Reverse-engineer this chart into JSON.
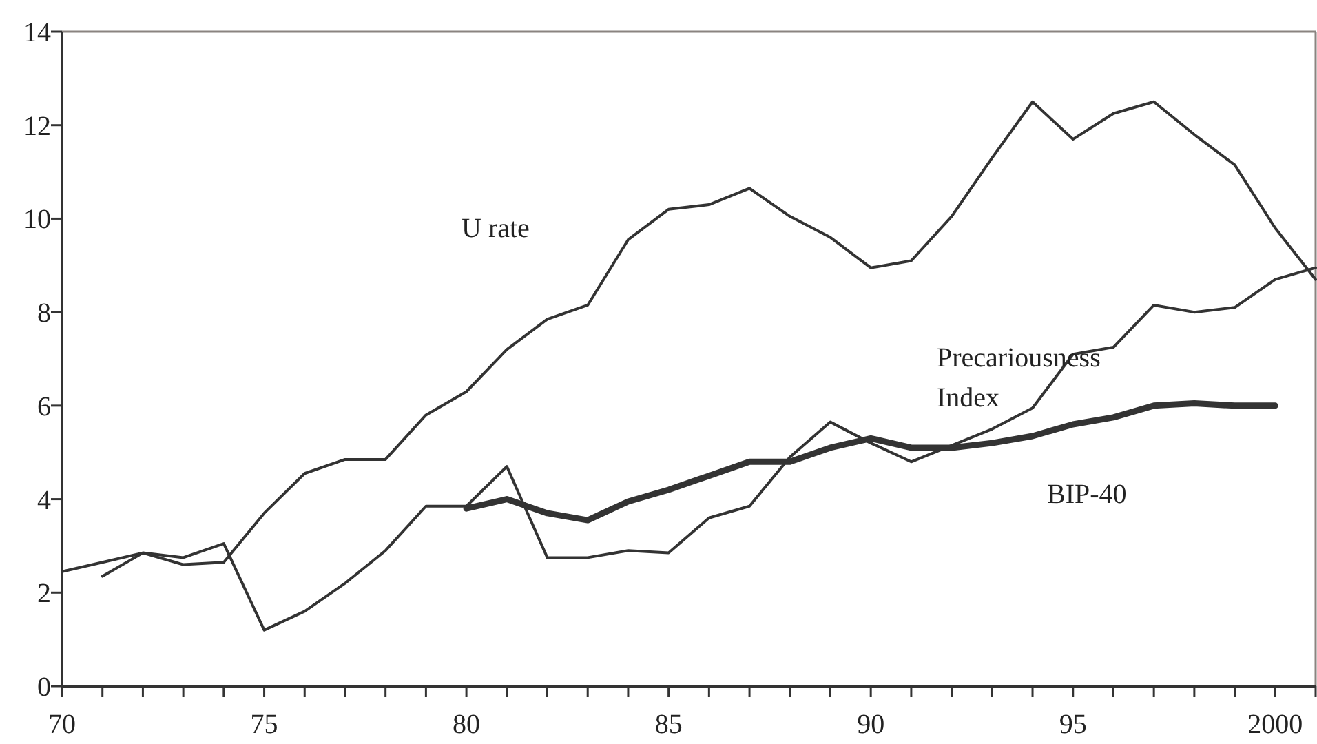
{
  "chart_data": {
    "type": "line",
    "xlim": [
      1970,
      2001
    ],
    "ylim": [
      0,
      14
    ],
    "xticks": [
      {
        "value": 1970,
        "label": "70"
      },
      {
        "value": 1971,
        "label": null
      },
      {
        "value": 1972,
        "label": null
      },
      {
        "value": 1973,
        "label": null
      },
      {
        "value": 1974,
        "label": null
      },
      {
        "value": 1975,
        "label": "75"
      },
      {
        "value": 1976,
        "label": null
      },
      {
        "value": 1977,
        "label": null
      },
      {
        "value": 1978,
        "label": null
      },
      {
        "value": 1979,
        "label": null
      },
      {
        "value": 1980,
        "label": "80"
      },
      {
        "value": 1981,
        "label": null
      },
      {
        "value": 1982,
        "label": null
      },
      {
        "value": 1983,
        "label": null
      },
      {
        "value": 1984,
        "label": null
      },
      {
        "value": 1985,
        "label": "85"
      },
      {
        "value": 1986,
        "label": null
      },
      {
        "value": 1987,
        "label": null
      },
      {
        "value": 1988,
        "label": null
      },
      {
        "value": 1989,
        "label": null
      },
      {
        "value": 1990,
        "label": "90"
      },
      {
        "value": 1991,
        "label": null
      },
      {
        "value": 1992,
        "label": null
      },
      {
        "value": 1993,
        "label": null
      },
      {
        "value": 1994,
        "label": null
      },
      {
        "value": 1995,
        "label": "95"
      },
      {
        "value": 1996,
        "label": null
      },
      {
        "value": 1997,
        "label": null
      },
      {
        "value": 1998,
        "label": null
      },
      {
        "value": 1999,
        "label": null
      },
      {
        "value": 2000,
        "label": "2000"
      },
      {
        "value": 2001,
        "label": null
      }
    ],
    "yticks": [
      0,
      2,
      4,
      6,
      8,
      10,
      12,
      14
    ],
    "grid": false,
    "marker": "none",
    "line_style": "solid",
    "series": [
      {
        "name": "U rate",
        "color": "#333333",
        "x": [
          1971,
          1972,
          1973,
          1974,
          1975,
          1976,
          1977,
          1978,
          1979,
          1980,
          1981,
          1982,
          1983,
          1984,
          1985,
          1986,
          1987,
          1988,
          1989,
          1990,
          1991,
          1992,
          1993,
          1994,
          1995,
          1996,
          1997,
          1998,
          1999,
          2000,
          2001
        ],
        "values": [
          2.35,
          2.85,
          2.6,
          2.65,
          3.7,
          4.55,
          4.85,
          4.85,
          5.8,
          6.3,
          7.2,
          7.85,
          8.15,
          9.55,
          10.2,
          10.3,
          10.65,
          10.05,
          9.6,
          8.95,
          9.1,
          10.05,
          11.3,
          12.5,
          11.7,
          12.25,
          12.5,
          11.8,
          11.15,
          9.8,
          8.7
        ]
      },
      {
        "name": "Precariousness Index",
        "color": "#333333",
        "x": [
          1970,
          1971,
          1972,
          1973,
          1974,
          1975,
          1976,
          1977,
          1978,
          1979,
          1980,
          1981,
          1982,
          1983,
          1984,
          1985,
          1986,
          1987,
          1988,
          1989,
          1990,
          1991,
          1992,
          1993,
          1994,
          1995,
          1996,
          1997,
          1998,
          1999,
          2000,
          2001
        ],
        "values": [
          2.45,
          2.65,
          2.85,
          2.75,
          3.05,
          1.2,
          1.6,
          2.2,
          2.9,
          3.85,
          3.85,
          4.7,
          2.75,
          2.75,
          2.9,
          2.85,
          3.6,
          3.85,
          4.9,
          5.65,
          5.2,
          4.8,
          5.15,
          5.5,
          5.95,
          7.1,
          7.25,
          8.15,
          8.0,
          8.1,
          8.7,
          8.95
        ]
      },
      {
        "name": "BIP-40",
        "color": "#333333",
        "x": [
          1980,
          1981,
          1982,
          1983,
          1984,
          1985,
          1986,
          1987,
          1988,
          1989,
          1990,
          1991,
          1992,
          1993,
          1994,
          1995,
          1996,
          1997,
          1998,
          1999,
          2000
        ],
        "values": [
          3.8,
          4.0,
          3.7,
          3.55,
          3.95,
          4.2,
          4.5,
          4.8,
          4.8,
          5.1,
          5.3,
          5.1,
          5.1,
          5.2,
          5.35,
          5.6,
          5.75,
          6.0,
          6.05,
          6.0,
          6.0
        ]
      }
    ]
  }
}
